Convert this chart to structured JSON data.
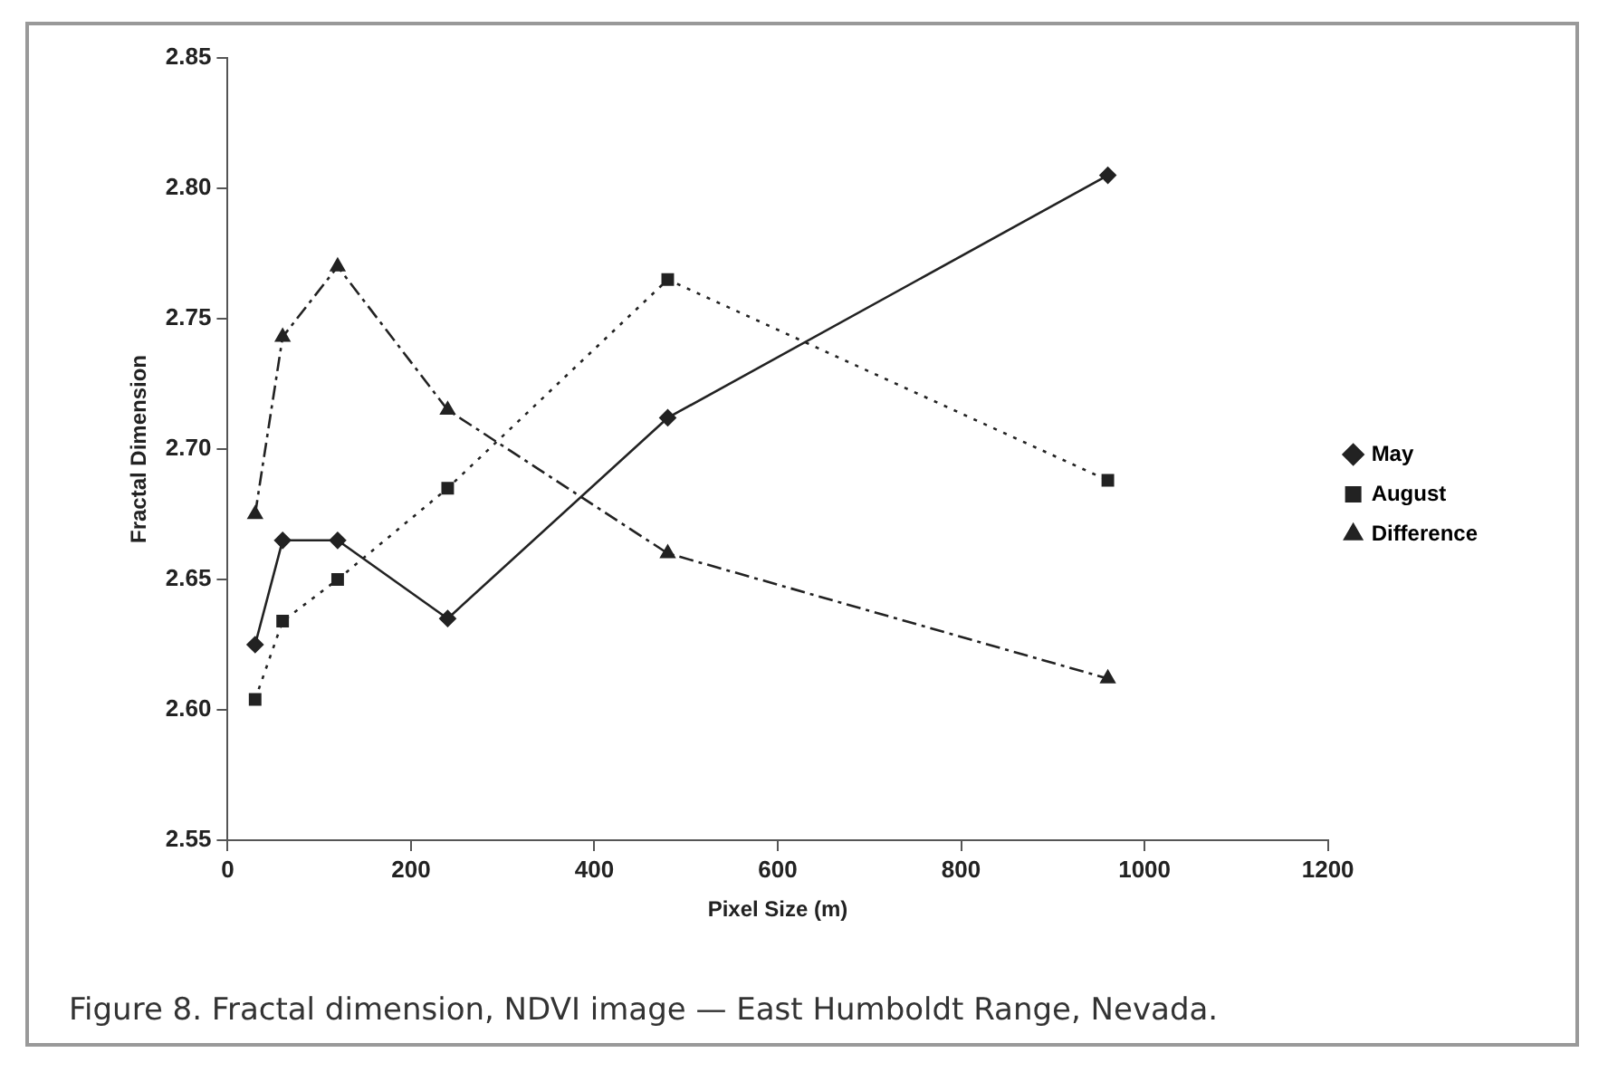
{
  "chart_data": {
    "type": "line",
    "xlabel": "Pixel Size (m)",
    "ylabel": "Fractal Dimension",
    "x": [
      30,
      60,
      120,
      240,
      480,
      960
    ],
    "series": [
      {
        "name": "May",
        "color": "#222222",
        "marker": "diamond",
        "line_style": "solid",
        "values": [
          2.625,
          2.665,
          2.665,
          2.635,
          2.712,
          2.805
        ]
      },
      {
        "name": "August",
        "color": "#222222",
        "marker": "square",
        "line_style": "dotted",
        "values": [
          2.604,
          2.634,
          2.65,
          2.685,
          2.765,
          2.688
        ]
      },
      {
        "name": "Difference",
        "color": "#222222",
        "marker": "triangle",
        "line_style": "dashed",
        "values": [
          2.675,
          2.743,
          2.77,
          2.715,
          2.66,
          2.612
        ]
      }
    ],
    "xlim": [
      0,
      1200
    ],
    "xticks": [
      0,
      200,
      400,
      600,
      800,
      1000,
      1200
    ],
    "ylim": [
      2.55,
      2.85
    ],
    "yticks": [
      {
        "value": 2.55,
        "label": "2.55"
      },
      {
        "value": 2.6,
        "label": "2.60"
      },
      {
        "value": 2.65,
        "label": "2.65"
      },
      {
        "value": 2.7,
        "label": "2.70"
      },
      {
        "value": 2.75,
        "label": "2.75"
      },
      {
        "value": 2.8,
        "label": "2.80"
      },
      {
        "value": 2.85,
        "label": "2.85"
      }
    ],
    "grid": false,
    "legend": "right",
    "annotations": [
      "Figure 8. Fractal dimension, NDVI image — East Humboldt Range, Nevada."
    ]
  }
}
